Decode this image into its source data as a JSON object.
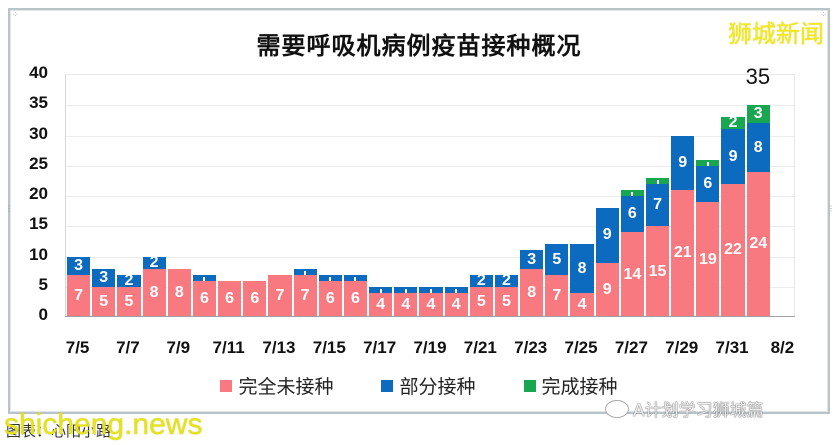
{
  "header": {
    "title": "需要呼吸机病例疫苗接种概况",
    "brand": "狮城新闻"
  },
  "colors": {
    "unvaccinated": "#f87a80",
    "partial": "#0d6bbf",
    "full": "#18a650"
  },
  "legend": [
    {
      "label": "完全未接种",
      "color": "#f87a80"
    },
    {
      "label": "部分接种",
      "color": "#0d6bbf"
    },
    {
      "label": "完成接种",
      "color": "#18a650"
    }
  ],
  "footer": {
    "caption": "图表：心阳小路",
    "watermark_site": "shicheng.news",
    "watermark_account": "A计划学习狮城篇"
  },
  "chart_data": {
    "type": "bar",
    "stacked": true,
    "title": "需要呼吸机病例疫苗接种概况",
    "xlabel": "",
    "ylabel": "",
    "ylim": [
      0,
      40
    ],
    "yticks": [
      0,
      5,
      10,
      15,
      20,
      25,
      30,
      35,
      40
    ],
    "grid": true,
    "legend_position": "bottom",
    "categories": [
      "7/5",
      "7/6",
      "7/7",
      "7/8",
      "7/9",
      "7/10",
      "7/11",
      "7/12",
      "7/13",
      "7/14",
      "7/15",
      "7/16",
      "7/17",
      "7/18",
      "7/19",
      "7/20",
      "7/21",
      "7/22",
      "7/23",
      "7/24",
      "7/25",
      "7/26",
      "7/27",
      "7/28",
      "7/29",
      "7/30",
      "7/31",
      "8/1",
      "8/2"
    ],
    "xtick_labels": [
      "7/5",
      "7/7",
      "7/9",
      "7/11",
      "7/13",
      "7/15",
      "7/17",
      "7/19",
      "7/21",
      "7/23",
      "7/25",
      "7/27",
      "7/29",
      "7/31",
      "8/2"
    ],
    "series": [
      {
        "name": "完全未接种",
        "color": "#f87a80",
        "values": [
          7,
          5,
          5,
          8,
          8,
          6,
          6,
          6,
          7,
          7,
          6,
          6,
          4,
          4,
          4,
          4,
          5,
          5,
          8,
          7,
          4,
          9,
          14,
          15,
          21,
          19,
          22,
          24,
          null
        ]
      },
      {
        "name": "部分接种",
        "color": "#0d6bbf",
        "values": [
          3,
          3,
          2,
          2,
          0,
          1,
          0,
          0,
          0,
          1,
          1,
          1,
          1,
          1,
          1,
          1,
          2,
          2,
          3,
          5,
          8,
          9,
          6,
          7,
          9,
          6,
          9,
          8,
          null
        ]
      },
      {
        "name": "完成接种",
        "color": "#18a650",
        "values": [
          0,
          0,
          0,
          0,
          0,
          0,
          0,
          0,
          0,
          0,
          0,
          0,
          0,
          0,
          0,
          0,
          0,
          0,
          0,
          0,
          0,
          0,
          1,
          1,
          0,
          1,
          2,
          3,
          null
        ]
      }
    ],
    "annotations": [
      {
        "category": "8/1",
        "text": "35",
        "position": "above-bar"
      }
    ]
  }
}
